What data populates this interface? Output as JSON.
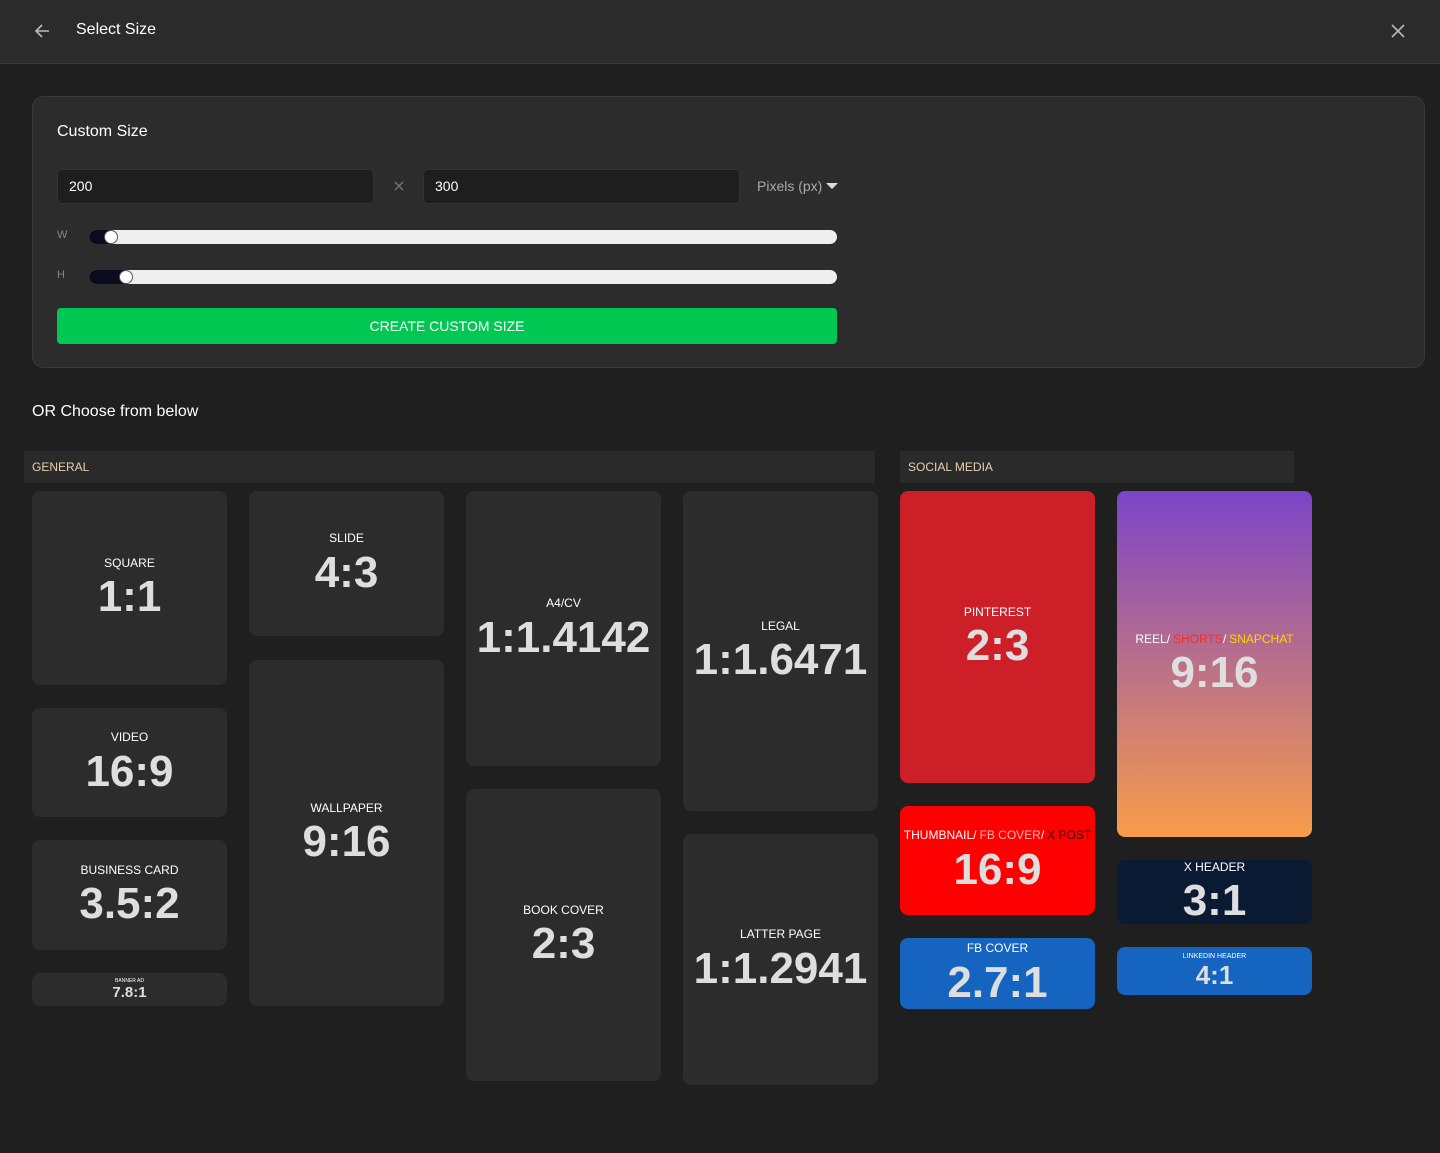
{
  "header": {
    "title": "Select Size"
  },
  "custom_size": {
    "title": "Custom Size",
    "width": "200",
    "height": "300",
    "unit": "Pixels (px)",
    "w_label": "W",
    "h_label": "H",
    "button": "CREATE CUSTOM SIZE"
  },
  "choose_label": "OR Choose from below",
  "sections": [
    {
      "title": "GENERAL",
      "cards": [
        {
          "name": "SQUARE",
          "ratio": "1:1"
        },
        {
          "name": "VIDEO",
          "ratio": "16:9"
        },
        {
          "name": "BUSINESS CARD",
          "ratio": "3.5:2"
        },
        {
          "name": "BANNER AD",
          "ratio": "7.8:1"
        },
        {
          "name": "SLIDE",
          "ratio": "4:3"
        },
        {
          "name": "WALLPAPER",
          "ratio": "9:16"
        },
        {
          "name": "A4/CV",
          "ratio": "1:1.4142"
        },
        {
          "name": "BOOK COVER",
          "ratio": "2:3"
        },
        {
          "name": "LEGAL",
          "ratio": "1:1.6471"
        },
        {
          "name": "LATTER PAGE",
          "ratio": "1:1.2941"
        }
      ]
    },
    {
      "title": "SOCIAL MEDIA",
      "cards": [
        {
          "name": "PINTEREST",
          "ratio": "2:3"
        },
        {
          "name_parts": [
            "THUMBNAIL/",
            "FB COVER",
            "/",
            "X POST"
          ],
          "ratio": "16:9"
        },
        {
          "name": "FB COVER",
          "ratio": "2.7:1"
        },
        {
          "name_parts": [
            "REEL/",
            "SHORTS",
            "/",
            "SNAPCHAT"
          ],
          "ratio": "9:16"
        },
        {
          "name": "X HEADER",
          "ratio": "3:1"
        },
        {
          "name": "LINKEDIN HEADER",
          "ratio": "4:1"
        }
      ]
    }
  ]
}
